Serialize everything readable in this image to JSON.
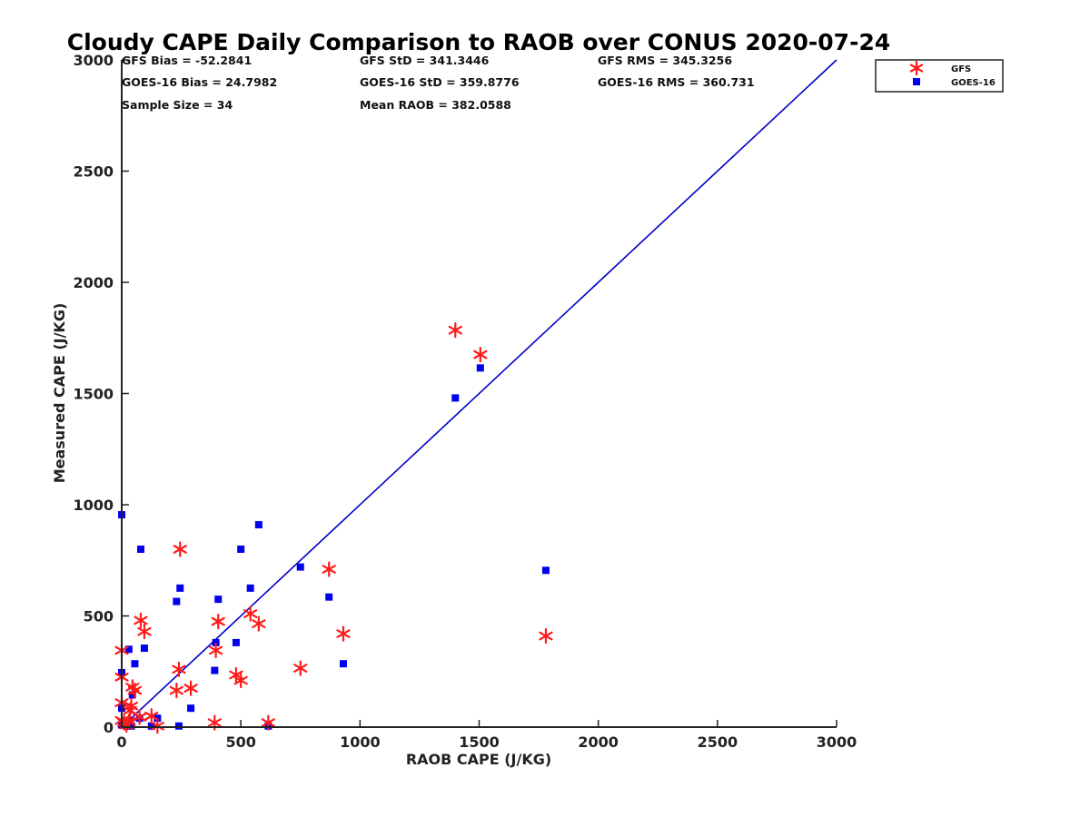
{
  "chart_data": {
    "type": "scatter",
    "title": "Cloudy CAPE Daily Comparison to RAOB over CONUS 2020-07-24",
    "xlabel": "RAOB CAPE (J/KG)",
    "ylabel": "Measured CAPE (J/KG)",
    "xlim": [
      0,
      3000
    ],
    "ylim": [
      0,
      3000
    ],
    "xticks": [
      "0",
      "500",
      "1000",
      "1500",
      "2000",
      "2500",
      "3000"
    ],
    "yticks": [
      "0",
      "500",
      "1000",
      "1500",
      "2000",
      "2500",
      "3000"
    ],
    "grid": false,
    "legend_position": "top-right",
    "stats": [
      "GFS Bias = -52.2841",
      "GFS StD = 341.3446",
      "GFS RMS = 345.3256",
      "GOES-16 Bias = 24.7982",
      "GOES-16 StD = 359.8776",
      "GOES-16 RMS = 360.731",
      "Sample Size = 34",
      "Mean RAOB = 382.0588"
    ],
    "reference_line": {
      "x": [
        0,
        3000
      ],
      "y": [
        0,
        3000
      ],
      "color": "#0000cc"
    },
    "series": [
      {
        "name": "GFS",
        "marker": "asterisk",
        "color": "#ff1a1a",
        "points": [
          [
            1400,
            1785
          ],
          [
            1505,
            1675
          ],
          [
            1780,
            410
          ],
          [
            930,
            420
          ],
          [
            870,
            710
          ],
          [
            750,
            265
          ],
          [
            615,
            20
          ],
          [
            575,
            465
          ],
          [
            540,
            510
          ],
          [
            500,
            210
          ],
          [
            480,
            235
          ],
          [
            405,
            475
          ],
          [
            395,
            345
          ],
          [
            390,
            20
          ],
          [
            290,
            175
          ],
          [
            245,
            800
          ],
          [
            240,
            260
          ],
          [
            230,
            165
          ],
          [
            150,
            5
          ],
          [
            125,
            50
          ],
          [
            95,
            430
          ],
          [
            80,
            480
          ],
          [
            75,
            45
          ],
          [
            55,
            165
          ],
          [
            45,
            180
          ],
          [
            40,
            95
          ],
          [
            35,
            75
          ],
          [
            30,
            25
          ],
          [
            10,
            20
          ],
          [
            0,
            345
          ],
          [
            0,
            225
          ],
          [
            0,
            110
          ],
          [
            0,
            30
          ],
          [
            20,
            10
          ]
        ]
      },
      {
        "name": "GOES-16",
        "marker": "square",
        "color": "#0000ee",
        "points": [
          [
            1505,
            1615
          ],
          [
            1400,
            1480
          ],
          [
            1780,
            705
          ],
          [
            930,
            285
          ],
          [
            870,
            585
          ],
          [
            750,
            720
          ],
          [
            615,
            5
          ],
          [
            575,
            910
          ],
          [
            540,
            625
          ],
          [
            500,
            800
          ],
          [
            480,
            380
          ],
          [
            405,
            575
          ],
          [
            395,
            380
          ],
          [
            390,
            255
          ],
          [
            290,
            85
          ],
          [
            245,
            625
          ],
          [
            240,
            5
          ],
          [
            230,
            565
          ],
          [
            150,
            40
          ],
          [
            125,
            5
          ],
          [
            95,
            355
          ],
          [
            80,
            800
          ],
          [
            75,
            40
          ],
          [
            55,
            285
          ],
          [
            45,
            145
          ],
          [
            40,
            5
          ],
          [
            30,
            350
          ],
          [
            10,
            10
          ],
          [
            0,
            955
          ],
          [
            0,
            245
          ],
          [
            0,
            85
          ],
          [
            0,
            10
          ],
          [
            20,
            5
          ],
          [
            30,
            20
          ]
        ]
      }
    ]
  }
}
